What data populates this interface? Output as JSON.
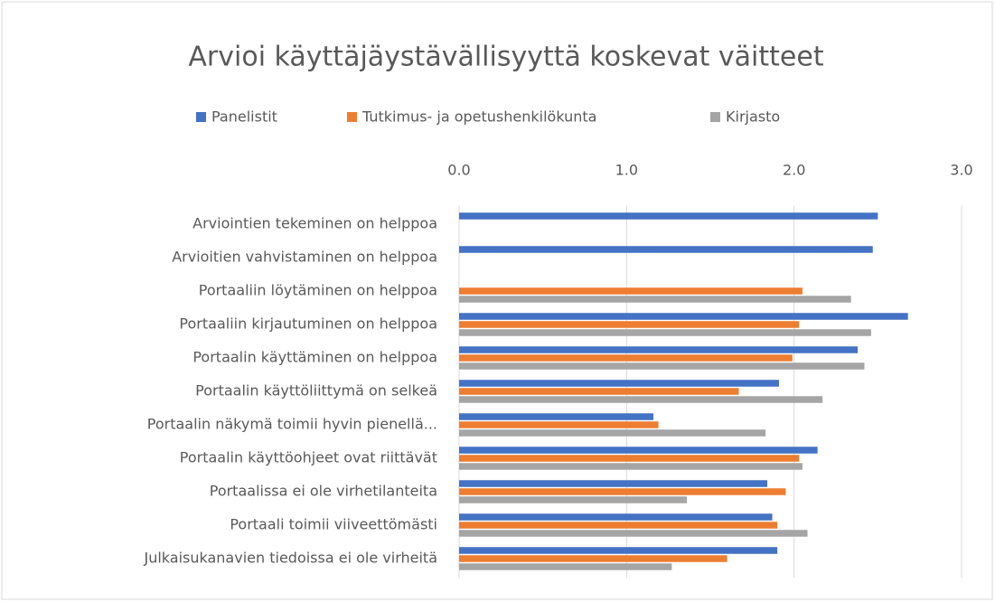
{
  "chart_data": {
    "type": "bar",
    "orientation": "horizontal",
    "title": "Arvioi käyttäjäystävällisyyttä koskevat väitteet",
    "categories": [
      "Arviointien tekeminen on helppoa",
      "Arvioitien vahvistaminen on helppoa",
      "Portaaliin löytäminen on helppoa",
      "Portaaliin kirjautuminen on helppoa",
      "Portaalin käyttäminen on helppoa",
      "Portaalin käyttöliittymä on selkeä",
      "Portaalin näkymä toimii hyvin pienellä...",
      "Portaalin käyttöohjeet ovat riittävät",
      "Portaalissa ei ole virhetilanteita",
      "Portaali toimii viiveettömästi",
      "Julkaisukanavien tiedoissa ei ole virheitä"
    ],
    "series": [
      {
        "name": "Panelistit",
        "color": "#4472c4",
        "values": [
          2.5,
          2.47,
          null,
          2.68,
          2.38,
          1.91,
          1.16,
          2.14,
          1.84,
          1.87,
          1.9
        ]
      },
      {
        "name": "Tutkimus- ja opetushenkilökunta",
        "color": "#ed7d31",
        "values": [
          null,
          null,
          2.05,
          2.03,
          1.99,
          1.67,
          1.19,
          2.03,
          1.95,
          1.9,
          1.6
        ]
      },
      {
        "name": "Kirjasto",
        "color": "#a5a5a5",
        "values": [
          null,
          null,
          2.34,
          2.46,
          2.42,
          2.17,
          1.83,
          2.05,
          1.36,
          2.08,
          1.27
        ]
      }
    ],
    "xlim": [
      0,
      3
    ],
    "xticks": [
      {
        "value": 0,
        "label": "0.0"
      },
      {
        "value": 1,
        "label": "1.0"
      },
      {
        "value": 2,
        "label": "2.0"
      },
      {
        "value": 3,
        "label": "3.0"
      }
    ],
    "grid": true,
    "legend": "top"
  }
}
